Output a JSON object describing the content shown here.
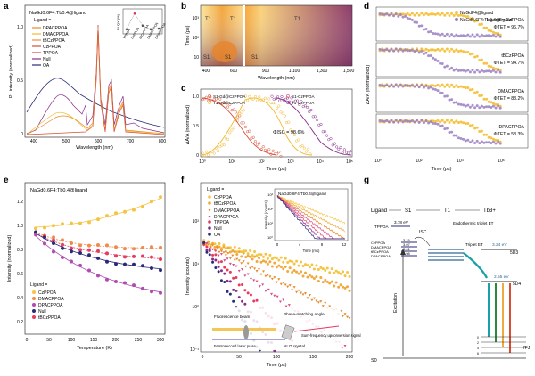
{
  "panels": {
    "a": {
      "letter": "a",
      "title": "NaGd0.6F4:Tb0.4@ligand",
      "ylabel": "PL intensity (normalized)",
      "xlabel": "Wavelength (nm)",
      "xticks": [
        "400",
        "500",
        "600",
        "700",
        "800"
      ],
      "yticks": [
        "0",
        "0.5",
        "1.0"
      ],
      "legend_title": "Ligand =",
      "legend": [
        "DPACPPOA",
        "DMACPPOA",
        "tBCzPPOA",
        "CzPPOA",
        "TPPOA",
        "Null",
        "OA"
      ],
      "inset": {
        "ylabel": "PLQY (%)",
        "yticks": [
          "0",
          "10",
          "20",
          "30"
        ],
        "categories": [
          "TPPOA",
          "CzPPOA",
          "tBCzPPOA",
          "DMACPPOA",
          "DPACPPOA"
        ],
        "values": [
          4,
          26,
          9,
          4,
          5
        ]
      }
    },
    "b": {
      "letter": "b",
      "ylabel": "Time (ps)",
      "xlabel": "Wavelength (nm)",
      "yticks": [
        "10",
        "10²",
        "10³"
      ],
      "xticks_left": [
        "400",
        "600"
      ],
      "xticks_right": [
        "900",
        "1,100",
        "1,300",
        "1,500"
      ],
      "labels": [
        "T1",
        "T1",
        "S1",
        "S1",
        "T1",
        "S1"
      ]
    },
    "c": {
      "letter": "c",
      "ylabel": "ΔA/A (normalized)",
      "xlabel": "Time (ps)",
      "yticks": [
        "0",
        "0.5",
        "1.0"
      ],
      "xticks": [
        "10⁰",
        "10¹",
        "10²",
        "10³",
        "10⁴",
        "10⁵"
      ],
      "legend": [
        "S1-Gd@CzPPOA",
        "T1-Gd@CzPPOA",
        "S1-CzPPOA",
        "T1-CzPPOA"
      ],
      "annotation": "ΦISC = 98.6%"
    },
    "d": {
      "letter": "d",
      "ylabel": "ΔA/A (normalized)",
      "xlabel": "Time (ps)",
      "xticks": [
        "10⁰",
        "10²",
        "10⁴",
        "10⁶"
      ],
      "legend": [
        "NaGdF4@ligand",
        "NaGd0.6F4:Tb0.4@ligand"
      ],
      "rows": [
        {
          "ligand": "Ligand = CzPPOA",
          "phi": "ΦTET = 96.7%"
        },
        {
          "ligand": "tBCzPPOA",
          "phi": "ΦTET = 94.7%"
        },
        {
          "ligand": "DMACPPOA",
          "phi": "ΦTET = 83.2%"
        },
        {
          "ligand": "DPACPPOA",
          "phi": "ΦTET = 53.3%"
        }
      ]
    },
    "e": {
      "letter": "e",
      "title": "NaGd0.6F4:Tb0.4@ligand",
      "ylabel": "Intensity (normalized)",
      "xlabel": "Temperature (K)",
      "xticks": [
        "0",
        "50",
        "100",
        "150",
        "200",
        "250",
        "300"
      ],
      "yticks": [
        "0.2",
        "0.4",
        "0.6",
        "0.8",
        "1.0",
        "1.2"
      ],
      "legend_title": "Ligand =",
      "legend": [
        "CzPPOA",
        "DMACPPOA",
        "DPACPPOA",
        "Null",
        "tBCzPPOA"
      ]
    },
    "f": {
      "letter": "f",
      "ylabel": "Intensity (counts)",
      "xlabel": "Time (ps)",
      "xticks": [
        "0",
        "50",
        "100",
        "150",
        "200"
      ],
      "yticks": [
        "10⁻¹",
        "10⁰",
        "10¹",
        "10²"
      ],
      "legend_title": "Ligand =",
      "legend": [
        "CzPPOA",
        "tBCzPPOA",
        "DMACPPOA",
        "DPACPPOA",
        "TPPOA",
        "Null",
        "OA"
      ],
      "inset": {
        "title": "NaGd0.6F4:Tb0.4@ligand",
        "ylabel": "Intensity (counts)",
        "xlabel": "Time (ms)",
        "xticks": [
          "0",
          "4",
          "8",
          "12"
        ],
        "yticks": [
          "10⁰",
          "10¹",
          "10²",
          "10³"
        ]
      },
      "schematic": [
        "Fluorescence beam",
        "Phase-matching angle",
        "Sum-frequency upconversion signal",
        "Femtosecond laser pulse",
        "NLO crystal"
      ]
    },
    "g": {
      "letter": "g",
      "header": [
        "Ligand",
        "S1",
        "T1",
        "Tb3+"
      ],
      "tppoa": {
        "name": "TPPOA",
        "value": "3.78 eV"
      },
      "levels": [
        {
          "name": "CzPPOA",
          "value": "3.15"
        },
        {
          "name": "DMACPPOA",
          "value": "3.07"
        },
        {
          "name": "tBCzPPOA",
          "value": "3.01"
        },
        {
          "name": "DPACPPOA",
          "value": "2.98"
        }
      ],
      "isc": "ISC",
      "endo": "Endothermic triplet ET",
      "triplet_et": "Triplet ET",
      "d3_energy": "3.24 eV",
      "d3": "5D3",
      "d4_energy": "2.55 eV",
      "d4": "5D4",
      "excitation": "Excitation",
      "s0": "S0",
      "fj": "7FJ",
      "fj_levels": [
        "0",
        "2",
        "4",
        "6"
      ]
    }
  }
}
